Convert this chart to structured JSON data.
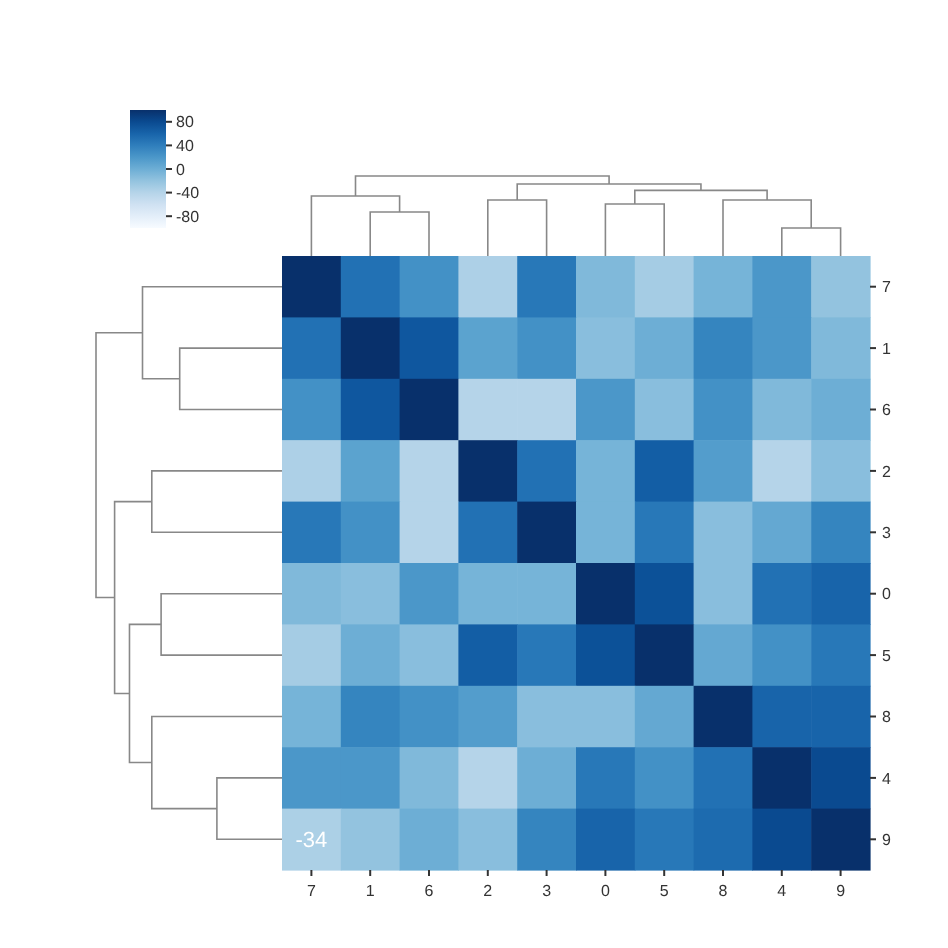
{
  "chart_data": {
    "type": "heatmap",
    "categories": [
      "7",
      "1",
      "6",
      "2",
      "3",
      "0",
      "5",
      "8",
      "4",
      "9"
    ],
    "y_categories": [
      "7",
      "1",
      "6",
      "2",
      "3",
      "0",
      "5",
      "8",
      "4",
      "9"
    ],
    "cells": [
      [
        100,
        50,
        25,
        -35,
        45,
        -10,
        -30,
        -5,
        20,
        -20
      ],
      [
        50,
        100,
        70,
        10,
        25,
        -15,
        0,
        35,
        20,
        -10
      ],
      [
        25,
        70,
        100,
        -40,
        -40,
        20,
        -15,
        25,
        -10,
        0
      ],
      [
        -35,
        10,
        -40,
        100,
        50,
        -5,
        65,
        15,
        -40,
        -15
      ],
      [
        45,
        25,
        -40,
        50,
        100,
        -5,
        45,
        -15,
        5,
        35
      ],
      [
        -10,
        -15,
        20,
        -5,
        -5,
        100,
        75,
        -15,
        50,
        60
      ],
      [
        -30,
        0,
        -15,
        65,
        45,
        75,
        100,
        5,
        25,
        45
      ],
      [
        -5,
        35,
        25,
        15,
        -15,
        -15,
        5,
        100,
        60,
        60
      ],
      [
        20,
        20,
        -10,
        -40,
        0,
        45,
        25,
        50,
        100,
        80
      ],
      [
        -34,
        -20,
        0,
        -15,
        35,
        60,
        45,
        55,
        80,
        100
      ]
    ],
    "cell_labels": [
      [
        null,
        null,
        null,
        null,
        null,
        null,
        null,
        null,
        null,
        null
      ],
      [
        null,
        null,
        null,
        null,
        null,
        null,
        null,
        null,
        null,
        null
      ],
      [
        null,
        null,
        null,
        null,
        null,
        null,
        null,
        null,
        null,
        null
      ],
      [
        null,
        null,
        null,
        null,
        null,
        null,
        null,
        null,
        null,
        null
      ],
      [
        null,
        null,
        null,
        null,
        null,
        null,
        null,
        null,
        null,
        null
      ],
      [
        null,
        null,
        null,
        null,
        null,
        null,
        null,
        null,
        null,
        null
      ],
      [
        null,
        null,
        null,
        null,
        null,
        null,
        null,
        null,
        null,
        null
      ],
      [
        null,
        null,
        null,
        null,
        null,
        null,
        null,
        null,
        null,
        null
      ],
      [
        null,
        null,
        null,
        null,
        null,
        null,
        null,
        null,
        null,
        null
      ],
      [
        "-34",
        null,
        null,
        null,
        null,
        null,
        null,
        null,
        null,
        null
      ]
    ],
    "clim": [
      -100,
      100
    ],
    "cticks": [
      80,
      40,
      0,
      -40,
      -80
    ]
  }
}
